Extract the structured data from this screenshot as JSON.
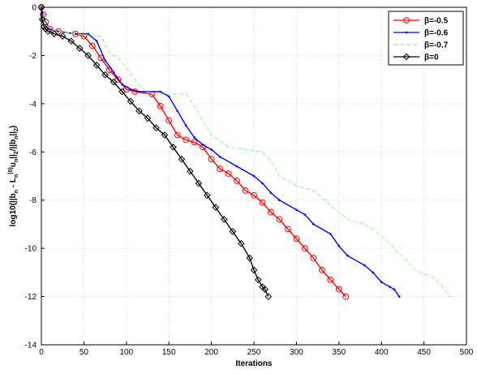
{
  "chart_data": {
    "type": "line",
    "title": "",
    "xlabel": "Iterations",
    "ylabel": "log10(||b_n - L_n^(0)u_n||_2/||b_n||_2)",
    "ylabel_parts": [
      "log10(||b",
      "n",
      " - L",
      "n",
      "(0)",
      "u",
      "n",
      "||",
      "2",
      "/||b",
      "n",
      "||",
      "2",
      ")"
    ],
    "xlim": [
      0,
      500
    ],
    "ylim": [
      -14,
      0
    ],
    "xticks": [
      0,
      50,
      100,
      150,
      200,
      250,
      300,
      350,
      400,
      450,
      500
    ],
    "yticks": [
      0,
      -2,
      -4,
      -6,
      -8,
      -10,
      -12,
      -14
    ],
    "grid": true,
    "legend_position": "top-right",
    "series": [
      {
        "name": "β=-0.5",
        "color": "#ff0000",
        "line_style": "solid",
        "marker": "circle",
        "x": [
          0,
          2,
          5,
          10,
          20,
          40,
          50,
          60,
          70,
          80,
          90,
          100,
          110,
          130,
          140,
          150,
          160,
          170,
          180,
          190,
          200,
          210,
          220,
          230,
          240,
          250,
          260,
          270,
          280,
          290,
          300,
          310,
          320,
          330,
          340,
          350,
          358
        ],
        "y": [
          0,
          -0.3,
          -0.6,
          -0.9,
          -1.0,
          -1.1,
          -1.2,
          -1.6,
          -2.1,
          -2.6,
          -3.0,
          -3.4,
          -3.5,
          -3.6,
          -4.1,
          -4.7,
          -5.3,
          -5.5,
          -5.6,
          -5.8,
          -6.3,
          -6.7,
          -6.9,
          -7.2,
          -7.6,
          -7.8,
          -8.1,
          -8.5,
          -8.8,
          -9.2,
          -9.6,
          -10.0,
          -10.4,
          -10.9,
          -11.3,
          -11.7,
          -12.0
        ]
      },
      {
        "name": "β=-0.6",
        "color": "#0000ff",
        "line_style": "solid",
        "marker": "point",
        "x": [
          0,
          2,
          5,
          10,
          20,
          40,
          55,
          65,
          75,
          85,
          95,
          105,
          115,
          140,
          150,
          160,
          170,
          180,
          190,
          200,
          210,
          230,
          250,
          260,
          270,
          280,
          300,
          310,
          320,
          340,
          350,
          360,
          380,
          390,
          400,
          410,
          415,
          421
        ],
        "y": [
          0,
          -0.3,
          -0.6,
          -0.9,
          -1.0,
          -1.1,
          -1.1,
          -1.4,
          -2.2,
          -2.7,
          -3.2,
          -3.4,
          -3.5,
          -3.5,
          -3.7,
          -4.3,
          -4.9,
          -5.4,
          -5.7,
          -5.9,
          -6.2,
          -6.6,
          -7.0,
          -7.3,
          -7.7,
          -8.0,
          -8.4,
          -8.6,
          -9.0,
          -9.4,
          -9.9,
          -10.3,
          -10.7,
          -11.0,
          -11.4,
          -11.6,
          -11.7,
          -12.0
        ]
      },
      {
        "name": "β=-0.7",
        "color": "#80ff80",
        "line_style": "dashed",
        "marker": "none",
        "x": [
          0,
          2,
          5,
          10,
          20,
          40,
          70,
          80,
          90,
          100,
          110,
          120,
          130,
          150,
          170,
          180,
          190,
          200,
          220,
          240,
          260,
          270,
          280,
          300,
          320,
          330,
          340,
          350,
          360,
          380,
          390,
          400,
          410,
          420,
          430,
          440,
          460,
          470,
          480
        ],
        "y": [
          0,
          -0.3,
          -0.6,
          -0.9,
          -1.0,
          -1.1,
          -1.2,
          -1.9,
          -2.1,
          -2.5,
          -3.0,
          -3.4,
          -3.6,
          -3.6,
          -3.6,
          -4.1,
          -4.7,
          -5.3,
          -5.8,
          -5.9,
          -6.0,
          -6.4,
          -7.0,
          -7.4,
          -7.6,
          -7.9,
          -8.2,
          -8.5,
          -8.8,
          -9.0,
          -9.2,
          -9.5,
          -9.8,
          -10.2,
          -10.5,
          -10.9,
          -11.2,
          -11.5,
          -12.0
        ]
      },
      {
        "name": "β=0",
        "color": "#000000",
        "line_style": "solid",
        "marker": "diamond",
        "x": [
          0,
          1,
          3,
          5,
          8,
          15,
          25,
          35,
          45,
          55,
          65,
          75,
          85,
          95,
          105,
          115,
          125,
          135,
          145,
          155,
          165,
          175,
          185,
          195,
          205,
          215,
          225,
          235,
          245,
          250,
          255,
          260,
          263,
          267
        ],
        "y": [
          0,
          -0.5,
          -0.8,
          -0.9,
          -1.0,
          -1.1,
          -1.2,
          -1.4,
          -1.7,
          -2.0,
          -2.4,
          -2.8,
          -3.1,
          -3.5,
          -3.9,
          -4.3,
          -4.6,
          -5.0,
          -5.3,
          -5.8,
          -6.3,
          -6.8,
          -7.3,
          -7.8,
          -8.3,
          -8.8,
          -9.3,
          -9.8,
          -10.4,
          -10.9,
          -11.3,
          -11.6,
          -11.7,
          -12.0
        ]
      }
    ]
  }
}
